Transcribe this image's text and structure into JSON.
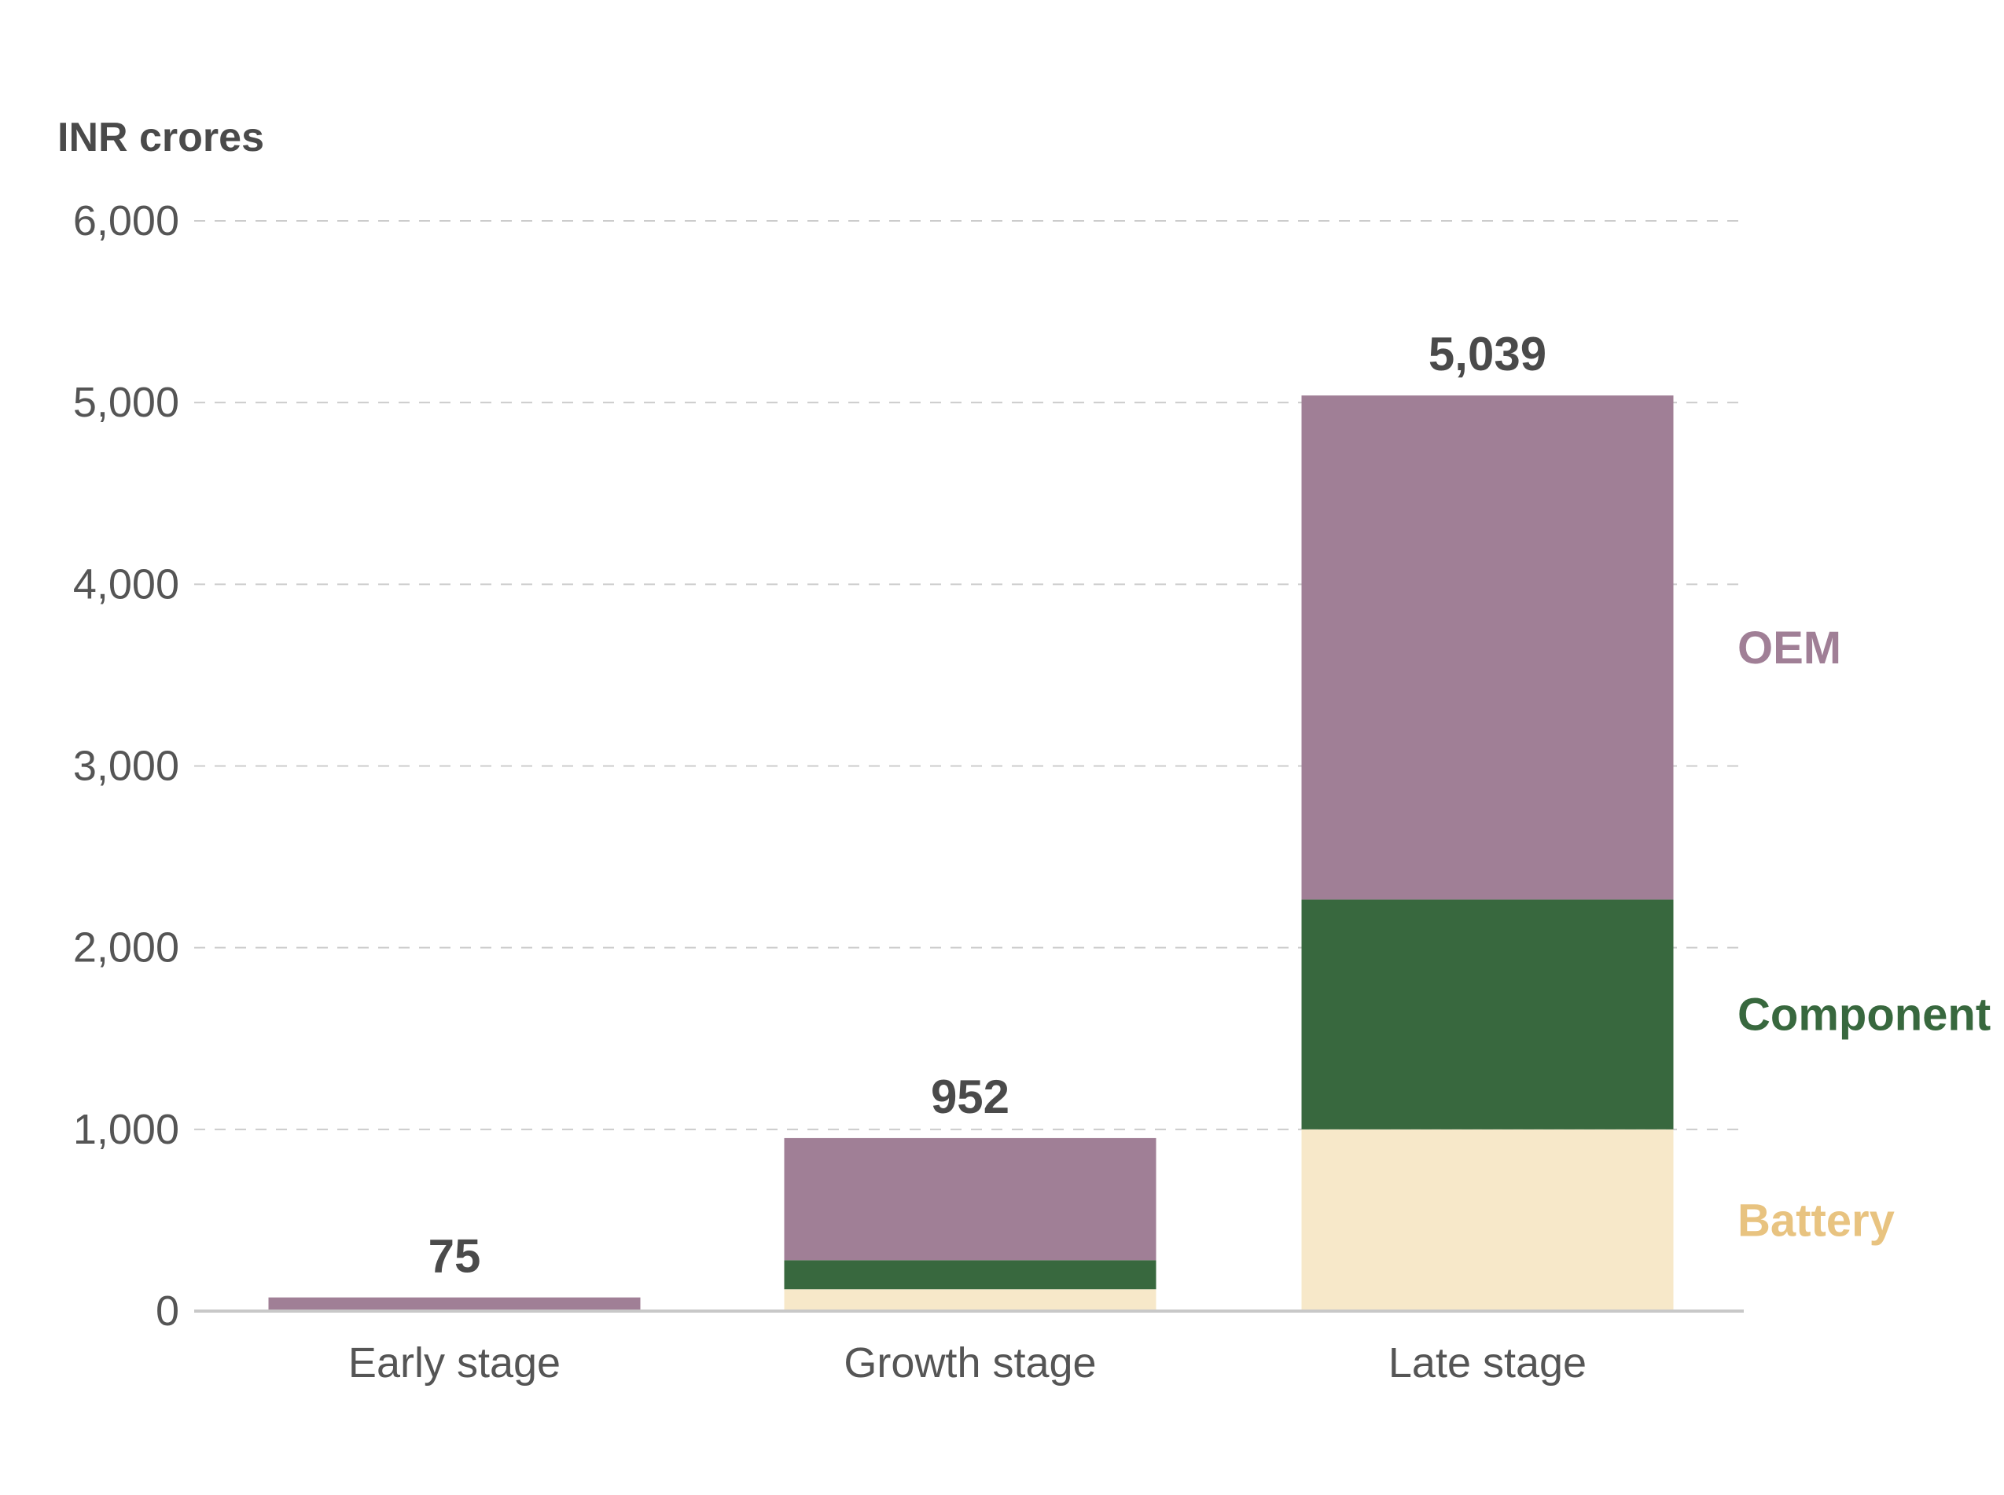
{
  "chart_data": {
    "type": "bar",
    "stacked": true,
    "ylabel": "INR crores",
    "ylim": [
      0,
      6000
    ],
    "yticks": [
      "0",
      "1,000",
      "2,000",
      "3,000",
      "4,000",
      "5,000",
      "6,000"
    ],
    "grid": true,
    "legend": "direct labels on right",
    "categories": [
      "Early stage",
      "Growth stage",
      "Late stage"
    ],
    "series": [
      {
        "name": "Battery",
        "color": "#f7e8c9",
        "label_color": "#e8c380",
        "values": [
          0,
          120,
          1000
        ]
      },
      {
        "name": "Component",
        "color": "#38683e",
        "label_color": "#38683e",
        "values": [
          0,
          160,
          1265
        ]
      },
      {
        "name": "OEM",
        "color": "#a07f96",
        "label_color": "#a07f96",
        "values": [
          75,
          672,
          2774
        ]
      }
    ],
    "totals": [
      "75",
      "952",
      "5,039"
    ],
    "total_values": [
      75,
      952,
      5039
    ]
  }
}
